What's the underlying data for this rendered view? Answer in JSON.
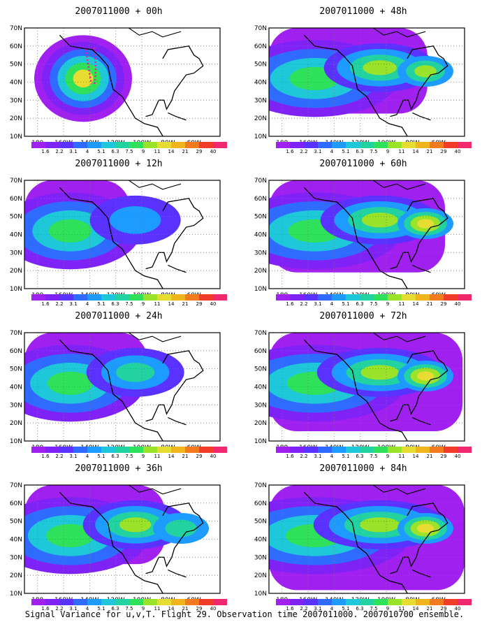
{
  "panels": [
    {
      "title": "2007011000 + 00h",
      "stage": 0
    },
    {
      "title": "2007011000 + 48h",
      "stage": 4
    },
    {
      "title": "2007011000 + 12h",
      "stage": 1
    },
    {
      "title": "2007011000 + 60h",
      "stage": 5
    },
    {
      "title": "2007011000 + 24h",
      "stage": 2
    },
    {
      "title": "2007011000 + 72h",
      "stage": 6
    },
    {
      "title": "2007011000 + 36h",
      "stage": 3
    },
    {
      "title": "2007011000 + 84h",
      "stage": 7
    }
  ],
  "axes": {
    "lat_labels": [
      "70N",
      "60N",
      "50N",
      "40N",
      "30N",
      "20N",
      "10N"
    ],
    "lon_labels": [
      "180",
      "160W",
      "140W",
      "120W",
      "100W",
      "80W",
      "60W"
    ]
  },
  "colorbar": {
    "labels": [
      "1.6",
      "2.2",
      "3.1",
      "4",
      "5.1",
      "6.3",
      "7.5",
      "9",
      "11",
      "14",
      "21",
      "29",
      "40"
    ],
    "colors": [
      "#a020f0",
      "#7f22f5",
      "#5a32ff",
      "#2f6bff",
      "#1e9bff",
      "#1fc8d8",
      "#22d2a0",
      "#2ee05a",
      "#9be22a",
      "#e6dc32",
      "#f0b41e",
      "#f47a1e",
      "#f03c28",
      "#f0286e"
    ]
  },
  "caption": "Signal Variance for u,v,T. Flight 29. Observation time 2007011000. 2007010700 ensemble."
}
